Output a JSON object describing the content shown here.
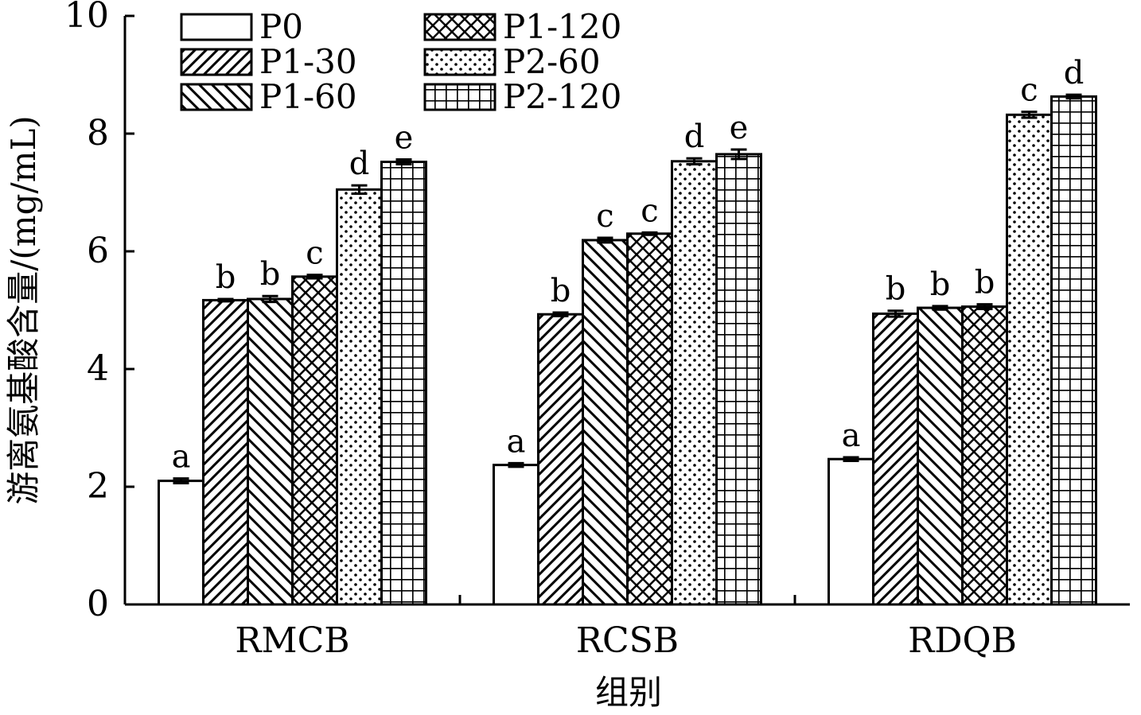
{
  "chart_data": {
    "type": "bar",
    "xlabel": "组别",
    "ylabel": "游离氨基酸含量/(mg/mL)",
    "ylim": [
      0,
      10
    ],
    "yticks": [
      "0",
      "2",
      "4",
      "6",
      "8",
      "10"
    ],
    "categories": [
      "RMCB",
      "RCSB",
      "RDQB"
    ],
    "legend_position": "top-left",
    "grid": false,
    "series": [
      {
        "name": "P0",
        "pattern": "none",
        "values": [
          2.1,
          2.37,
          2.47
        ],
        "errors": [
          0.04,
          0.03,
          0.03
        ],
        "labels": [
          "a",
          "a",
          "a"
        ]
      },
      {
        "name": "P1-30",
        "pattern": "diag-right",
        "values": [
          5.17,
          4.93,
          4.94
        ],
        "errors": [
          0.02,
          0.03,
          0.05
        ],
        "labels": [
          "b",
          "b",
          "b"
        ]
      },
      {
        "name": "P1-60",
        "pattern": "diag-left",
        "values": [
          5.19,
          6.19,
          5.04
        ],
        "errors": [
          0.05,
          0.04,
          0.03
        ],
        "labels": [
          "b",
          "c",
          "b"
        ]
      },
      {
        "name": "P1-120",
        "pattern": "crosshatch",
        "values": [
          5.57,
          6.3,
          5.06
        ],
        "errors": [
          0.03,
          0.02,
          0.04
        ],
        "labels": [
          "c",
          "c",
          "b"
        ]
      },
      {
        "name": "P2-60",
        "pattern": "dots",
        "values": [
          7.05,
          7.53,
          8.32
        ],
        "errors": [
          0.07,
          0.05,
          0.05
        ],
        "labels": [
          "d",
          "d",
          "c"
        ]
      },
      {
        "name": "P2-120",
        "pattern": "grid",
        "values": [
          7.52,
          7.65,
          8.63
        ],
        "errors": [
          0.04,
          0.08,
          0.03
        ],
        "labels": [
          "e",
          "e",
          "d"
        ]
      }
    ]
  }
}
